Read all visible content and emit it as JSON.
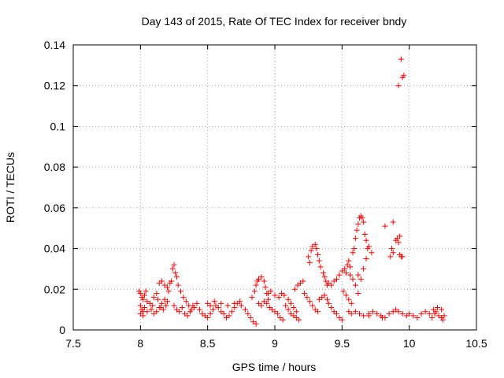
{
  "chart_data": {
    "type": "scatter",
    "title": "Day 143 of 2015, Rate Of TEC Index for receiver bndy",
    "xlabel": "GPS time / hours",
    "ylabel": "ROTI / TECUs",
    "xlim": [
      7.5,
      10.5
    ],
    "ylim": [
      0,
      0.14
    ],
    "xticks": [
      7.5,
      8,
      8.5,
      9,
      9.5,
      10,
      10.5
    ],
    "xtick_labels": [
      "7.5",
      "8",
      "8.5",
      "9",
      "9.5",
      "10",
      "10.5"
    ],
    "yticks": [
      0,
      0.02,
      0.04,
      0.06,
      0.08,
      0.1,
      0.12,
      0.14
    ],
    "ytick_labels": [
      "0",
      "0.02",
      "0.04",
      "0.06",
      "0.08",
      "0.1",
      "0.12",
      "0.14"
    ],
    "grid": true,
    "marker": "+",
    "color": "#ff0000",
    "series": [
      {
        "name": "ROTI",
        "points": [
          [
            7.99,
            0.019
          ],
          [
            8.0,
            0.018
          ],
          [
            8.01,
            0.016
          ],
          [
            8.02,
            0.015
          ],
          [
            8.03,
            0.017
          ],
          [
            8.04,
            0.019
          ],
          [
            8.0,
            0.012
          ],
          [
            8.01,
            0.01
          ],
          [
            8.02,
            0.009
          ],
          [
            8.03,
            0.011
          ],
          [
            8.0,
            0.008
          ],
          [
            8.02,
            0.007
          ],
          [
            8.05,
            0.014
          ],
          [
            8.07,
            0.013
          ],
          [
            8.09,
            0.012
          ],
          [
            8.1,
            0.016
          ],
          [
            8.12,
            0.018
          ],
          [
            8.13,
            0.015
          ],
          [
            8.15,
            0.011
          ],
          [
            8.17,
            0.01
          ],
          [
            8.19,
            0.012
          ],
          [
            8.2,
            0.014
          ],
          [
            8.05,
            0.009
          ],
          [
            8.08,
            0.01
          ],
          [
            8.1,
            0.008
          ],
          [
            8.12,
            0.009
          ],
          [
            8.14,
            0.011
          ],
          [
            8.16,
            0.013
          ],
          [
            8.18,
            0.015
          ],
          [
            8.14,
            0.023
          ],
          [
            8.16,
            0.024
          ],
          [
            8.18,
            0.022
          ],
          [
            8.2,
            0.021
          ],
          [
            8.22,
            0.023
          ],
          [
            8.23,
            0.024
          ],
          [
            8.21,
            0.019
          ],
          [
            8.24,
            0.03
          ],
          [
            8.25,
            0.032
          ],
          [
            8.26,
            0.028
          ],
          [
            8.27,
            0.026
          ],
          [
            8.28,
            0.022
          ],
          [
            8.3,
            0.019
          ],
          [
            8.32,
            0.016
          ],
          [
            8.34,
            0.014
          ],
          [
            8.36,
            0.012
          ],
          [
            8.38,
            0.01
          ],
          [
            8.25,
            0.012
          ],
          [
            8.27,
            0.01
          ],
          [
            8.29,
            0.009
          ],
          [
            8.31,
            0.011
          ],
          [
            8.33,
            0.008
          ],
          [
            8.35,
            0.007
          ],
          [
            8.37,
            0.009
          ],
          [
            8.39,
            0.012
          ],
          [
            8.4,
            0.011
          ],
          [
            8.42,
            0.013
          ],
          [
            8.44,
            0.01
          ],
          [
            8.46,
            0.008
          ],
          [
            8.48,
            0.007
          ],
          [
            8.5,
            0.006
          ],
          [
            8.52,
            0.008
          ],
          [
            8.54,
            0.01
          ],
          [
            8.56,
            0.012
          ],
          [
            8.58,
            0.011
          ],
          [
            8.6,
            0.009
          ],
          [
            8.62,
            0.008
          ],
          [
            8.64,
            0.006
          ],
          [
            8.66,
            0.007
          ],
          [
            8.68,
            0.009
          ],
          [
            8.7,
            0.011
          ],
          [
            8.72,
            0.013
          ],
          [
            8.74,
            0.014
          ],
          [
            8.5,
            0.013
          ],
          [
            8.52,
            0.012
          ],
          [
            8.55,
            0.014
          ],
          [
            8.6,
            0.013
          ],
          [
            8.65,
            0.012
          ],
          [
            8.7,
            0.013
          ],
          [
            8.75,
            0.012
          ],
          [
            8.78,
            0.01
          ],
          [
            8.8,
            0.008
          ],
          [
            8.82,
            0.006
          ],
          [
            8.84,
            0.004
          ],
          [
            8.86,
            0.003
          ],
          [
            8.83,
            0.016
          ],
          [
            8.85,
            0.019
          ],
          [
            8.86,
            0.022
          ],
          [
            8.87,
            0.024
          ],
          [
            8.88,
            0.025
          ],
          [
            8.9,
            0.026
          ],
          [
            8.92,
            0.024
          ],
          [
            8.93,
            0.021
          ],
          [
            8.94,
            0.018
          ],
          [
            8.95,
            0.015
          ],
          [
            8.88,
            0.013
          ],
          [
            8.9,
            0.012
          ],
          [
            8.92,
            0.014
          ],
          [
            8.94,
            0.013
          ],
          [
            8.96,
            0.011
          ],
          [
            8.98,
            0.01
          ],
          [
            9.0,
            0.009
          ],
          [
            9.02,
            0.008
          ],
          [
            9.04,
            0.006
          ],
          [
            9.06,
            0.005
          ],
          [
            8.95,
            0.018
          ],
          [
            8.97,
            0.019
          ],
          [
            9.0,
            0.017
          ],
          [
            9.03,
            0.016
          ],
          [
            9.05,
            0.018
          ],
          [
            9.07,
            0.017
          ],
          [
            9.1,
            0.015
          ],
          [
            9.12,
            0.013
          ],
          [
            9.14,
            0.011
          ],
          [
            9.16,
            0.009
          ],
          [
            9.08,
            0.012
          ],
          [
            9.1,
            0.01
          ],
          [
            9.12,
            0.008
          ],
          [
            9.14,
            0.007
          ],
          [
            9.16,
            0.006
          ],
          [
            9.18,
            0.005
          ],
          [
            9.15,
            0.02
          ],
          [
            9.17,
            0.022
          ],
          [
            9.19,
            0.023
          ],
          [
            9.21,
            0.024
          ],
          [
            9.22,
            0.018
          ],
          [
            9.24,
            0.016
          ],
          [
            9.26,
            0.014
          ],
          [
            9.28,
            0.012
          ],
          [
            9.3,
            0.01
          ],
          [
            9.32,
            0.009
          ],
          [
            9.25,
            0.036
          ],
          [
            9.27,
            0.039
          ],
          [
            9.28,
            0.041
          ],
          [
            9.3,
            0.042
          ],
          [
            9.31,
            0.04
          ],
          [
            9.32,
            0.037
          ],
          [
            9.33,
            0.034
          ],
          [
            9.34,
            0.031
          ],
          [
            9.26,
            0.033
          ],
          [
            9.36,
            0.028
          ],
          [
            9.37,
            0.026
          ],
          [
            9.38,
            0.024
          ],
          [
            9.39,
            0.022
          ],
          [
            9.4,
            0.023
          ],
          [
            9.33,
            0.015
          ],
          [
            9.35,
            0.016
          ],
          [
            9.37,
            0.017
          ],
          [
            9.39,
            0.015
          ],
          [
            9.4,
            0.013
          ],
          [
            9.42,
            0.011
          ],
          [
            9.44,
            0.009
          ],
          [
            9.46,
            0.008
          ],
          [
            9.48,
            0.006
          ],
          [
            9.5,
            0.005
          ],
          [
            9.42,
            0.022
          ],
          [
            9.44,
            0.024
          ],
          [
            9.46,
            0.025
          ],
          [
            9.48,
            0.027
          ],
          [
            9.5,
            0.029
          ],
          [
            9.52,
            0.03
          ],
          [
            9.54,
            0.032
          ],
          [
            9.55,
            0.034
          ],
          [
            9.56,
            0.031
          ],
          [
            9.53,
            0.028
          ],
          [
            9.51,
            0.019
          ],
          [
            9.53,
            0.017
          ],
          [
            9.55,
            0.015
          ],
          [
            9.57,
            0.013
          ],
          [
            9.58,
            0.038
          ],
          [
            9.59,
            0.04
          ],
          [
            9.6,
            0.045
          ],
          [
            9.61,
            0.049
          ],
          [
            9.62,
            0.052
          ],
          [
            9.63,
            0.055
          ],
          [
            9.64,
            0.056
          ],
          [
            9.65,
            0.055
          ],
          [
            9.66,
            0.053
          ],
          [
            9.67,
            0.047
          ],
          [
            9.68,
            0.044
          ],
          [
            9.69,
            0.04
          ],
          [
            9.62,
            0.027
          ],
          [
            9.64,
            0.025
          ],
          [
            9.66,
            0.03
          ],
          [
            9.68,
            0.035
          ],
          [
            9.7,
            0.041
          ],
          [
            9.72,
            0.038
          ],
          [
            9.6,
            0.022
          ],
          [
            9.62,
            0.018
          ],
          [
            9.58,
            0.025
          ],
          [
            9.56,
            0.027
          ],
          [
            9.55,
            0.009
          ],
          [
            9.57,
            0.008
          ],
          [
            9.6,
            0.009
          ],
          [
            9.63,
            0.008
          ],
          [
            9.66,
            0.007
          ],
          [
            9.7,
            0.008
          ],
          [
            9.73,
            0.009
          ],
          [
            9.76,
            0.008
          ],
          [
            9.79,
            0.007
          ],
          [
            9.82,
            0.006
          ],
          [
            9.85,
            0.008
          ],
          [
            9.88,
            0.009
          ],
          [
            9.9,
            0.01
          ],
          [
            9.92,
            0.009
          ],
          [
            9.82,
            0.051
          ],
          [
            9.88,
            0.053
          ],
          [
            9.87,
            0.04
          ],
          [
            9.88,
            0.038
          ],
          [
            9.86,
            0.036
          ],
          [
            9.9,
            0.044
          ],
          [
            9.91,
            0.045
          ],
          [
            9.92,
            0.043
          ],
          [
            9.93,
            0.037
          ],
          [
            9.94,
            0.036
          ],
          [
            9.95,
            0.036
          ],
          [
            9.93,
            0.046
          ],
          [
            9.92,
            0.12
          ],
          [
            9.94,
            0.133
          ],
          [
            9.95,
            0.124
          ],
          [
            9.96,
            0.125
          ],
          [
            9.95,
            0.008
          ],
          [
            9.98,
            0.007
          ],
          [
            10.0,
            0.008
          ],
          [
            10.03,
            0.007
          ],
          [
            10.06,
            0.006
          ],
          [
            10.09,
            0.008
          ],
          [
            10.12,
            0.009
          ],
          [
            10.15,
            0.008
          ],
          [
            10.18,
            0.01
          ],
          [
            10.2,
            0.009
          ],
          [
            10.22,
            0.007
          ],
          [
            10.24,
            0.006
          ],
          [
            10.25,
            0.005
          ],
          [
            10.26,
            0.007
          ],
          [
            10.24,
            0.01
          ],
          [
            10.21,
            0.011
          ],
          [
            10.19,
            0.008
          ],
          [
            10.17,
            0.006
          ],
          [
            9.7,
            0.007
          ],
          [
            9.8,
            0.006
          ]
        ]
      }
    ]
  }
}
